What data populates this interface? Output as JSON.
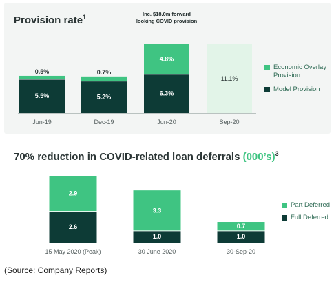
{
  "colors": {
    "light": "#3fc482",
    "dark": "#0d3b36",
    "pale": "#e2f4e8",
    "axis_text": "#555f5f"
  },
  "chart_data": [
    {
      "type": "bar",
      "stacked": true,
      "title": "Provision rate",
      "title_superscript": "1",
      "categories": [
        "Jun-19",
        "Dec-19",
        "Jun-20",
        "Sep-20"
      ],
      "series": [
        {
          "name": "Model Provision",
          "values": [
            5.5,
            5.2,
            6.3,
            null
          ],
          "labels": [
            "5.5%",
            "5.2%",
            "6.3%",
            ""
          ]
        },
        {
          "name": "Economic Overlay Provision",
          "values": [
            0.5,
            0.7,
            4.8,
            null
          ],
          "labels": [
            "0.5%",
            "0.7%",
            "4.8%",
            ""
          ]
        }
      ],
      "total_only": {
        "category": "Sep-20",
        "value": 11.1,
        "label": "11.1%"
      },
      "annotation": {
        "category": "Jun-20",
        "lines": [
          "Inc. $18.0m forward",
          "looking COVID provision"
        ]
      },
      "legend": [
        {
          "name": "Economic Overlay Provision",
          "lines": [
            "Economic Overlay",
            "Provision"
          ]
        },
        {
          "name": "Model Provision",
          "lines": [
            "Model Provision"
          ]
        }
      ],
      "ylim": [
        0,
        11.1
      ],
      "legend_position": "right",
      "grid": false
    },
    {
      "type": "bar",
      "stacked": true,
      "title": "70% reduction in COVID-related loan deferrals",
      "title_accent": "(000’s)",
      "title_superscript": "3",
      "categories": [
        "15 May 2020 (Peak)",
        "30 June 2020",
        "30-Sep-20"
      ],
      "series": [
        {
          "name": "Full Deferred",
          "values": [
            2.6,
            1.0,
            1.0
          ],
          "labels": [
            "2.6",
            "1.0",
            "1.0"
          ]
        },
        {
          "name": "Part Deferred",
          "values": [
            2.9,
            3.3,
            0.7
          ],
          "labels": [
            "2.9",
            "3.3",
            "0.7"
          ]
        }
      ],
      "legend": [
        {
          "name": "Part Deferred",
          "lines": [
            "Part Deferred"
          ]
        },
        {
          "name": "Full Deferred",
          "lines": [
            "Full Deferred"
          ]
        }
      ],
      "ylim": [
        0,
        5.5
      ],
      "legend_position": "right",
      "grid": false
    }
  ],
  "source": "(Source: Company Reports)"
}
